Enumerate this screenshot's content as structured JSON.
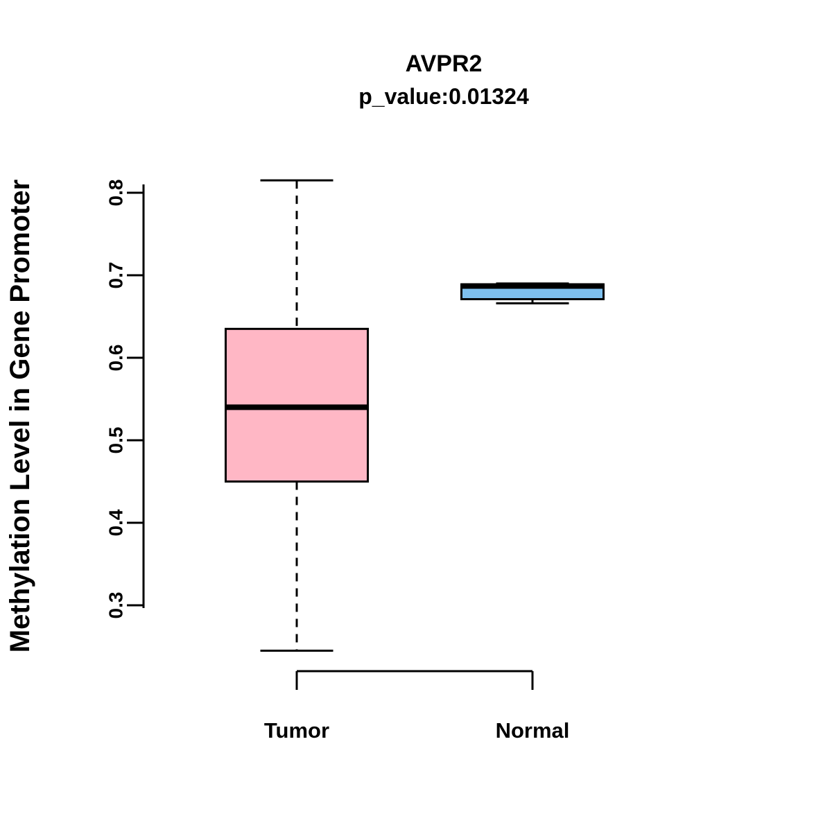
{
  "chart_data": {
    "type": "boxplot",
    "title": "AVPR2",
    "subtitle": "p_value:0.01324",
    "ylabel": "Methylation Level in Gene Promoter",
    "xlabel": "",
    "categories": [
      "Tumor",
      "Normal"
    ],
    "yticks": [
      0.3,
      0.4,
      0.5,
      0.6,
      0.7,
      0.8
    ],
    "ylim": [
      0.24,
      0.82
    ],
    "grid": false,
    "legend": "none",
    "boxes": [
      {
        "category": "Tumor",
        "color": "#FFB7C5",
        "lower_whisker": 0.245,
        "q1": 0.45,
        "median": 0.54,
        "q3": 0.635,
        "upper_whisker": 0.815
      },
      {
        "category": "Normal",
        "color": "#7EC0EE",
        "lower_whisker": 0.666,
        "q1": 0.671,
        "median": 0.687,
        "q3": 0.689,
        "upper_whisker": 0.69
      }
    ]
  }
}
